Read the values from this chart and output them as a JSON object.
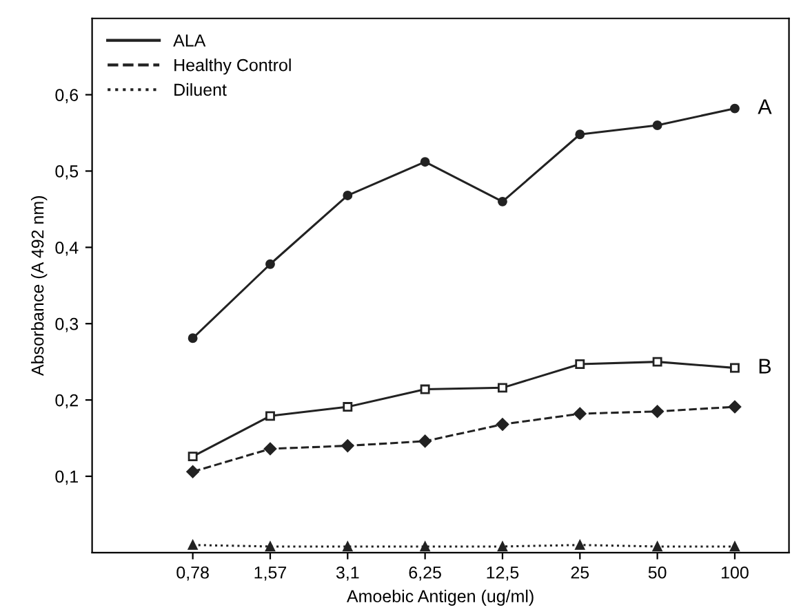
{
  "chart_data": {
    "type": "line",
    "xlabel": "Amoebic Antigen (ug/ml)",
    "ylabel": "Absorbance (A 492 nm)",
    "categories": [
      "0,78",
      "1,57",
      "3,1",
      "6,25",
      "12,5",
      "25",
      "50",
      "100"
    ],
    "series": [
      {
        "name": "ALA",
        "color": "#222222",
        "line_style": "solid",
        "marker": "circle",
        "values": [
          0.281,
          0.378,
          0.468,
          0.512,
          0.46,
          0.548,
          0.56,
          0.582
        ]
      },
      {
        "color": "#222222",
        "line_style": "solid",
        "marker": "square",
        "values": [
          0.126,
          0.179,
          0.191,
          0.214,
          0.216,
          0.247,
          0.25,
          0.242
        ]
      },
      {
        "name": "Healthy Control",
        "color": "#222222",
        "line_style": "dashed",
        "marker": "diamond",
        "values": [
          0.106,
          0.136,
          0.14,
          0.146,
          0.168,
          0.182,
          0.185,
          0.191
        ]
      },
      {
        "name": "Diluent",
        "color": "#222222",
        "line_style": "dotted",
        "marker": "triangle",
        "values": [
          0.01,
          0.008,
          0.008,
          0.008,
          0.008,
          0.01,
          0.008,
          0.008
        ]
      }
    ],
    "annotations": [
      {
        "text": "A",
        "x": "100",
        "y": 0.582
      },
      {
        "text": "B",
        "x": "100",
        "y": 0.242
      }
    ],
    "ylim": [
      0,
      0.7
    ],
    "yticks": [
      {
        "value": 0.1,
        "label": "0,1"
      },
      {
        "value": 0.2,
        "label": "0,2"
      },
      {
        "value": 0.3,
        "label": "0,3"
      },
      {
        "value": 0.4,
        "label": "0,4"
      },
      {
        "value": 0.5,
        "label": "0,5"
      },
      {
        "value": 0.6,
        "label": "0,6"
      }
    ],
    "grid": false,
    "legend": "top left"
  }
}
